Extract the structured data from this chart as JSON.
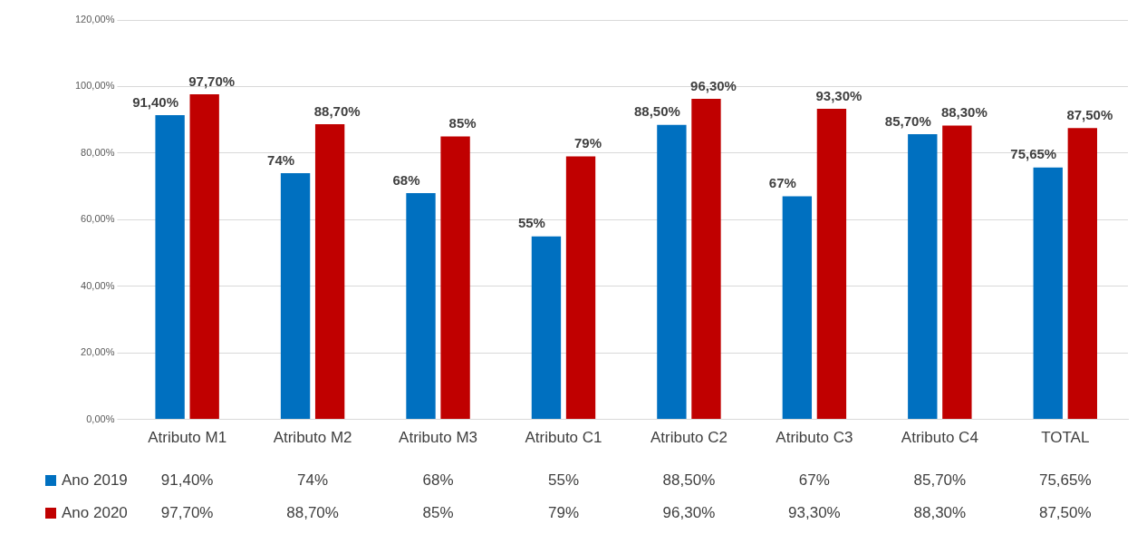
{
  "chart_data": {
    "type": "bar",
    "categories": [
      "Atributo M1",
      "Atributo M2",
      "Atributo M3",
      "Atributo C1",
      "Atributo C2",
      "Atributo C3",
      "Atributo C4",
      "TOTAL"
    ],
    "series": [
      {
        "name": "Ano 2019",
        "color": "#0070c0",
        "values": [
          91.4,
          74,
          68,
          55,
          88.5,
          67,
          85.7,
          75.65
        ],
        "value_labels": [
          "91,40%",
          "74%",
          "68%",
          "55%",
          "88,50%",
          "67%",
          "85,70%",
          "75,65%"
        ]
      },
      {
        "name": "Ano 2020",
        "color": "#c00000",
        "values": [
          97.7,
          88.7,
          85,
          79,
          96.3,
          93.3,
          88.3,
          87.5
        ],
        "value_labels": [
          "97,70%",
          "88,70%",
          "85%",
          "79%",
          "96,30%",
          "93,30%",
          "88,30%",
          "87,50%"
        ]
      }
    ],
    "ylim": [
      0,
      120
    ],
    "yticks": [
      {
        "value": 0,
        "label": "0,00%"
      },
      {
        "value": 20,
        "label": "20,00%"
      },
      {
        "value": 40,
        "label": "40,00%"
      },
      {
        "value": 60,
        "label": "60,00%"
      },
      {
        "value": 80,
        "label": "80,00%"
      },
      {
        "value": 100,
        "label": "100,00%"
      },
      {
        "value": 120,
        "label": "120,00%"
      }
    ],
    "grid": "y",
    "legend": "bottom"
  }
}
